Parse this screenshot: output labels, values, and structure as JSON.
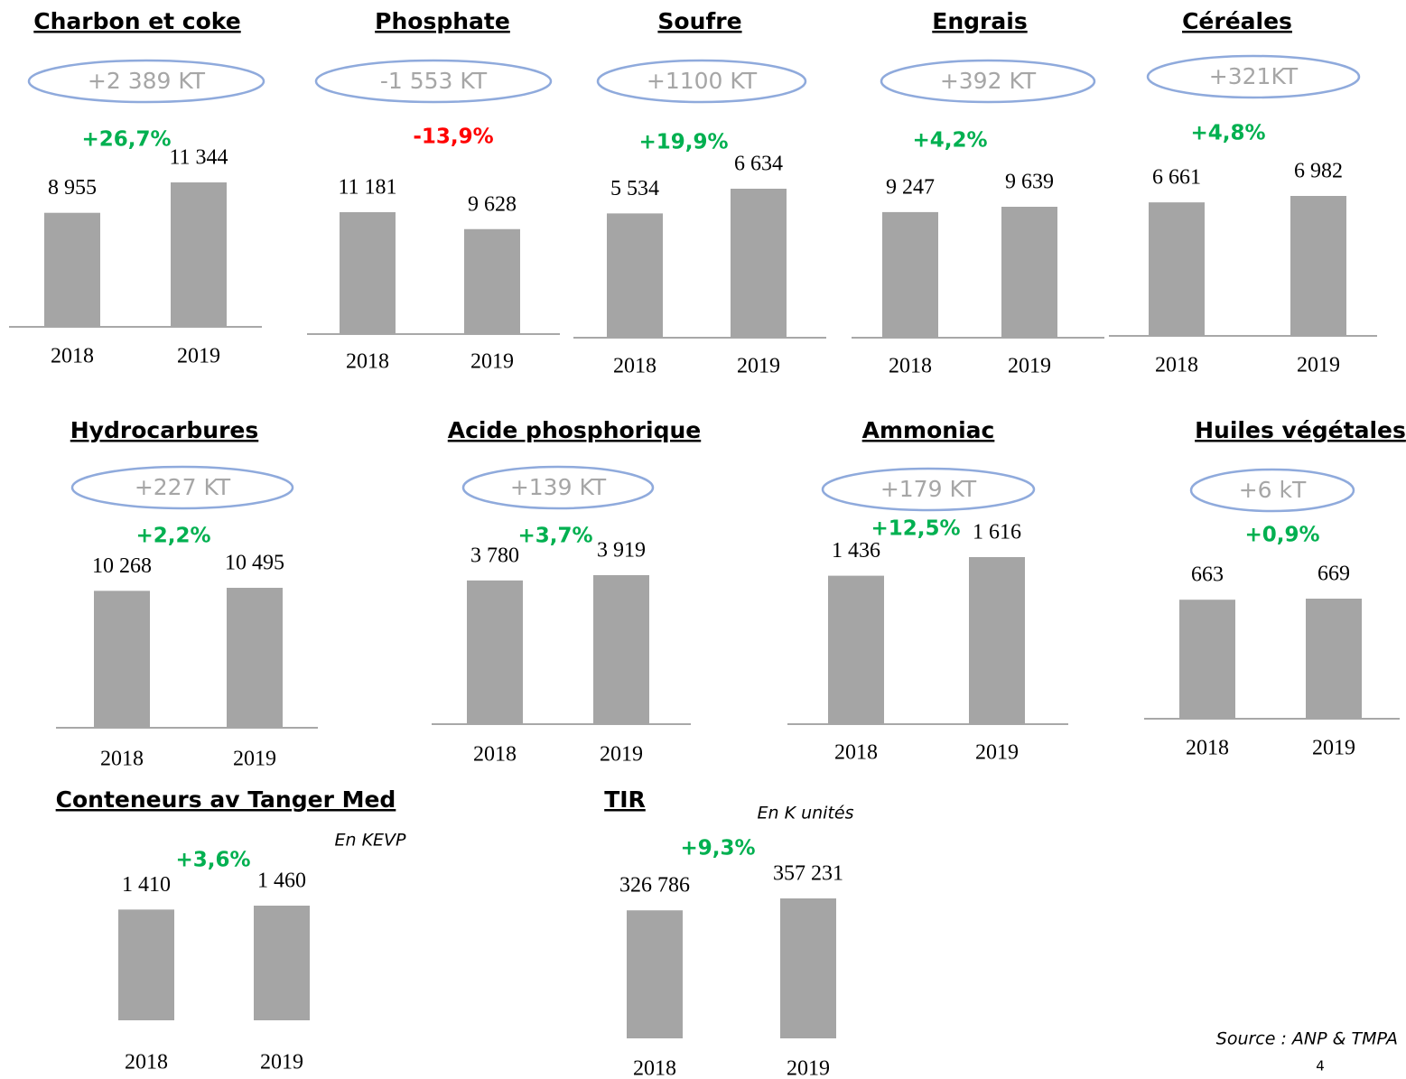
{
  "chart_data": [
    {
      "type": "bar",
      "title": "Charbon et coke",
      "badge": "+2 389 KT",
      "change": "+26,7%",
      "change_color": "#00b050",
      "categories": [
        "2018",
        "2019"
      ],
      "values": [
        8955,
        11344
      ],
      "value_labels": [
        "8 955",
        "11 344"
      ],
      "color": "#a5a5a5"
    },
    {
      "type": "bar",
      "title": "Phosphate",
      "badge": "-1 553 KT",
      "change": "-13,9%",
      "change_color": "#ff0000",
      "categories": [
        "2018",
        "2019"
      ],
      "values": [
        11181,
        9628
      ],
      "value_labels": [
        "11 181",
        "9 628"
      ],
      "color": "#a5a5a5"
    },
    {
      "type": "bar",
      "title": "Soufre",
      "badge": "+1100 KT",
      "change": "+19,9%",
      "change_color": "#00b050",
      "categories": [
        "2018",
        "2019"
      ],
      "values": [
        5534,
        6634
      ],
      "value_labels": [
        "5 534",
        "6 634"
      ],
      "color": "#a5a5a5"
    },
    {
      "type": "bar",
      "title": "Engrais",
      "badge": "+392 KT",
      "change": "+4,2%",
      "change_color": "#00b050",
      "categories": [
        "2018",
        "2019"
      ],
      "values": [
        9247,
        9639
      ],
      "value_labels": [
        "9 247",
        "9 639"
      ],
      "color": "#a5a5a5"
    },
    {
      "type": "bar",
      "title": "Céréales",
      "badge": "+321KT",
      "change": "+4,8%",
      "change_color": "#00b050",
      "categories": [
        "2018",
        "2019"
      ],
      "values": [
        6661,
        6982
      ],
      "value_labels": [
        "6 661",
        "6 982"
      ],
      "color": "#a5a5a5"
    },
    {
      "type": "bar",
      "title": "Hydrocarbures",
      "badge": "+227 KT",
      "change": "+2,2%",
      "change_color": "#00b050",
      "categories": [
        "2018",
        "2019"
      ],
      "values": [
        10268,
        10495
      ],
      "value_labels": [
        "10 268",
        "10 495"
      ],
      "color": "#a5a5a5"
    },
    {
      "type": "bar",
      "title": "Acide phosphorique",
      "badge": "+139 KT",
      "change": "+3,7%",
      "change_color": "#00b050",
      "categories": [
        "2018",
        "2019"
      ],
      "values": [
        3780,
        3919
      ],
      "value_labels": [
        "3 780",
        "3 919"
      ],
      "color": "#a5a5a5"
    },
    {
      "type": "bar",
      "title": "Ammoniac",
      "badge": "+179 KT",
      "change": "+12,5%",
      "change_color": "#00b050",
      "categories": [
        "2018",
        "2019"
      ],
      "values": [
        1436,
        1616
      ],
      "value_labels": [
        "1 436",
        "1 616"
      ],
      "color": "#a5a5a5"
    },
    {
      "type": "bar",
      "title": "Huiles végétales",
      "badge": "+6 kT",
      "change": "+0,9%",
      "change_color": "#00b050",
      "categories": [
        "2018",
        "2019"
      ],
      "values": [
        663,
        669
      ],
      "color": "#a5a5a5"
    },
    {
      "type": "bar",
      "title": "Conteneurs av Tanger Med",
      "unit": "En KEVP",
      "change": "+3,6%",
      "change_color": "#00b050",
      "categories": [
        "2018",
        "2019"
      ],
      "values": [
        1410,
        1460
      ],
      "value_labels": [
        "1 410",
        "1 460"
      ],
      "color": "#a5a5a5"
    },
    {
      "type": "bar",
      "title": "TIR",
      "unit": "En K unités",
      "change": "+9,3%",
      "change_color": "#00b050",
      "categories": [
        "2018",
        "2019"
      ],
      "values": [
        326786,
        357231
      ],
      "value_labels": [
        "326 786",
        "357 231"
      ],
      "color": "#a5a5a5"
    }
  ],
  "source": "Source : ANP & TMPA",
  "page_number": "4"
}
